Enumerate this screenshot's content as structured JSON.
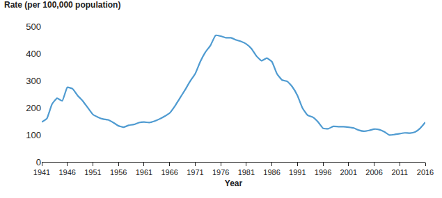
{
  "chart_data": {
    "type": "line",
    "y_label": "Rate (per 100,000 population)",
    "x_label": "Year",
    "x": [
      1941,
      1942,
      1943,
      1944,
      1945,
      1946,
      1947,
      1948,
      1949,
      1950,
      1951,
      1952,
      1953,
      1954,
      1955,
      1956,
      1957,
      1958,
      1959,
      1960,
      1961,
      1962,
      1963,
      1964,
      1965,
      1966,
      1967,
      1968,
      1969,
      1970,
      1971,
      1972,
      1973,
      1974,
      1975,
      1976,
      1977,
      1978,
      1979,
      1980,
      1981,
      1982,
      1983,
      1984,
      1985,
      1986,
      1987,
      1988,
      1989,
      1990,
      1991,
      1992,
      1993,
      1994,
      1995,
      1996,
      1997,
      1998,
      1999,
      2000,
      2001,
      2002,
      2003,
      2004,
      2005,
      2006,
      2007,
      2008,
      2009,
      2010,
      2011,
      2012,
      2013,
      2014,
      2015,
      2016
    ],
    "values": [
      147,
      160,
      213,
      235,
      225,
      275,
      270,
      245,
      225,
      200,
      175,
      165,
      158,
      155,
      145,
      133,
      128,
      135,
      138,
      145,
      147,
      145,
      150,
      158,
      168,
      180,
      205,
      235,
      265,
      297,
      325,
      370,
      405,
      430,
      467,
      464,
      458,
      458,
      450,
      444,
      435,
      418,
      390,
      373,
      383,
      370,
      325,
      302,
      297,
      277,
      245,
      198,
      172,
      165,
      148,
      124,
      122,
      131,
      130,
      130,
      128,
      125,
      117,
      113,
      116,
      121,
      119,
      111,
      99,
      101,
      104,
      107,
      106,
      110,
      124,
      146
    ],
    "color": "#4f9bd1",
    "xlim": [
      1941,
      2016
    ],
    "xticks": [
      1941,
      1946,
      1951,
      1956,
      1961,
      1966,
      1971,
      1976,
      1981,
      1986,
      1991,
      1996,
      2001,
      2006,
      2011,
      2016
    ],
    "ylim": [
      0,
      500
    ],
    "yticks": [
      0,
      100,
      200,
      300,
      400,
      500
    ],
    "grid": false
  }
}
